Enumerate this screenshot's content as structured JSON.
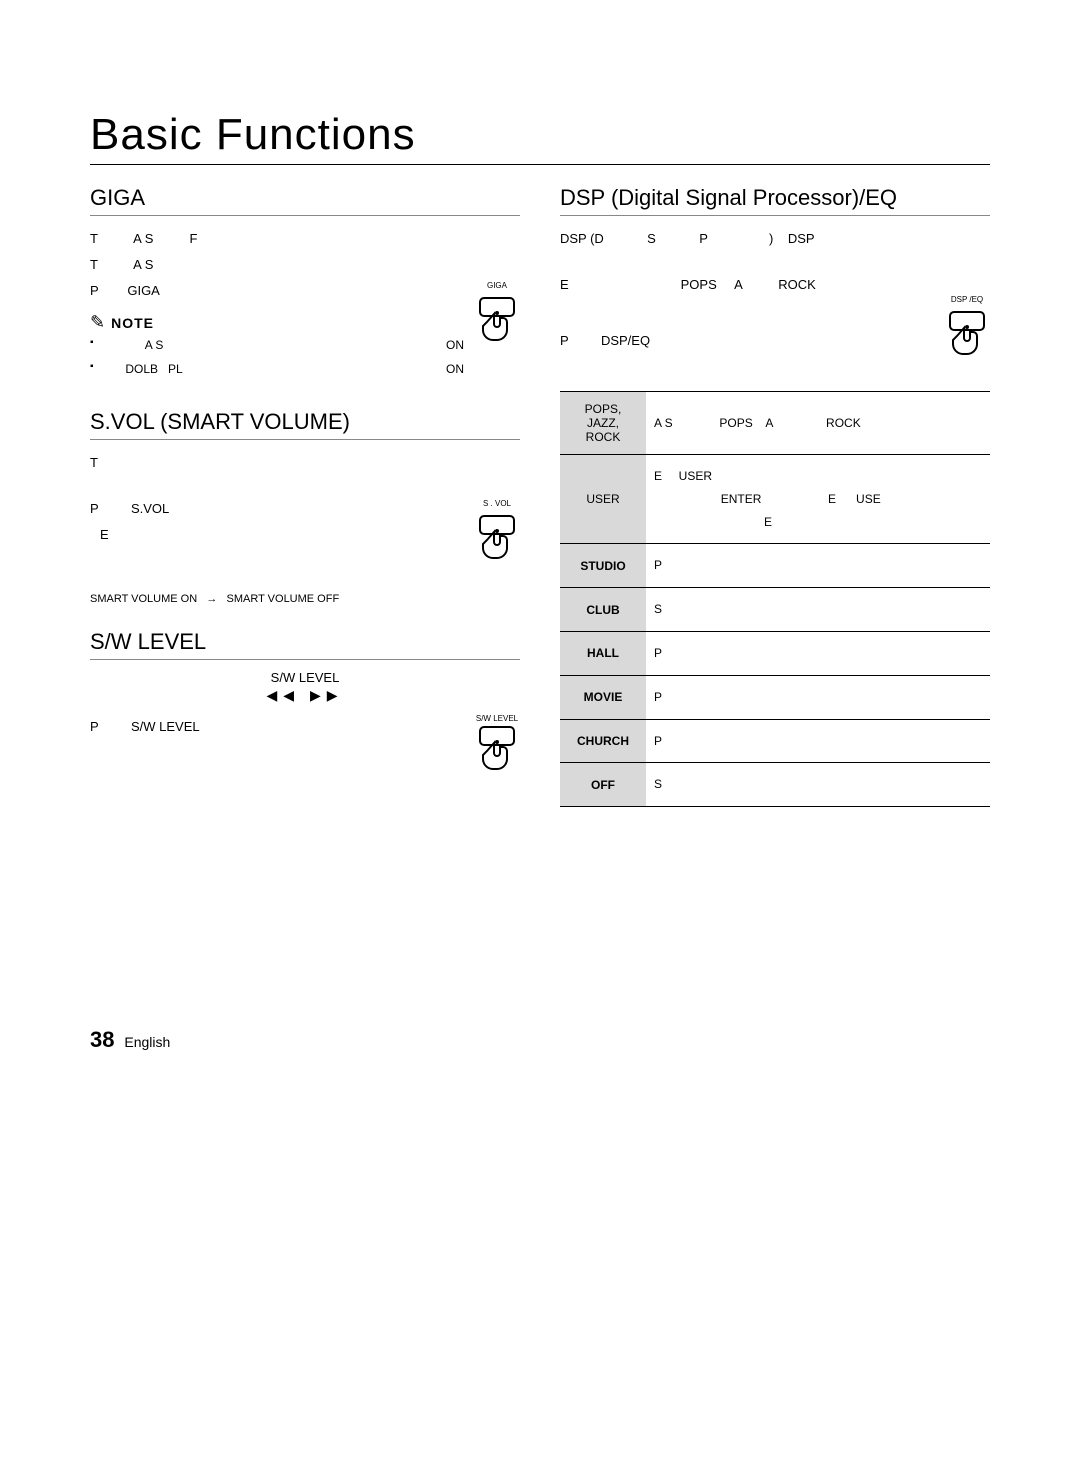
{
  "page": {
    "title": "Basic Functions",
    "number": "38",
    "lang": "English"
  },
  "left": {
    "giga": {
      "heading": "GIGA",
      "line1": "T",
      "line1b": "A S",
      "line1c": "F",
      "line2": "T",
      "line2b": "A S",
      "line3a": "P",
      "line3b": "GIGA",
      "btn_label": "GIGA",
      "note": "NOTE",
      "b1a": "A S",
      "b1b": "ON",
      "b2a": "DOLB",
      "b2b": "PL",
      "b2c": "ON"
    },
    "svol": {
      "heading": "S.VOL (SMART VOLUME)",
      "line1": "T",
      "line2a": "P",
      "line2b": "S.VOL",
      "line2c": "E",
      "btn_label": "S . VOL",
      "toggle_on": "SMART VOLUME ON",
      "toggle_off": "SMART VOLUME OFF"
    },
    "sw": {
      "heading": "S/W LEVEL",
      "center": "S/W LEVEL",
      "line2a": "P",
      "line2b": "S/W LEVEL",
      "btn_label": "S/W LEVEL",
      "icons": "◀◀   ▶▶"
    }
  },
  "right": {
    "heading": "DSP (Digital Signal Processor)/EQ",
    "l1": {
      "a": "DSP (D",
      "b": "S",
      "c": "P",
      "d": ")",
      "e": "DSP"
    },
    "l2": {
      "a": "E",
      "b": "POPS",
      "c": "A",
      "d": "ROCK"
    },
    "l3": {
      "a": "P",
      "b": "DSP/EQ"
    },
    "btn_label": "DSP /EQ",
    "rows": [
      {
        "mode": "POPS, JAZZ, ROCK",
        "desc": "A S              POPS    A                ROCK",
        "bold": false
      },
      {
        "mode": "USER",
        "desc": "E     USER\n                    ENTER                    E      USE\n                                 E",
        "bold": false
      },
      {
        "mode": "STUDIO",
        "desc": "P",
        "bold": true
      },
      {
        "mode": "CLUB",
        "desc": "S",
        "bold": true
      },
      {
        "mode": "HALL",
        "desc": "P",
        "bold": true
      },
      {
        "mode": "MOVIE",
        "desc": "P",
        "bold": true
      },
      {
        "mode": "CHURCH",
        "desc": "P",
        "bold": true
      },
      {
        "mode": "OFF",
        "desc": "S",
        "bold": true
      }
    ]
  }
}
